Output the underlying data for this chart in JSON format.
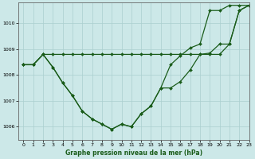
{
  "title": "Graphe pression niveau de la mer (hPa)",
  "background_color": "#cce8e8",
  "grid_color": "#aacfcf",
  "line_color": "#1a5c1a",
  "marker_color": "#1a5c1a",
  "xlim": [
    -0.5,
    23
  ],
  "ylim": [
    1005.5,
    1010.8
  ],
  "yticks": [
    1006,
    1007,
    1008,
    1009,
    1010
  ],
  "xticks": [
    0,
    1,
    2,
    3,
    4,
    5,
    6,
    7,
    8,
    9,
    10,
    11,
    12,
    13,
    14,
    15,
    16,
    17,
    18,
    19,
    20,
    21,
    22,
    23
  ],
  "series1_x": [
    0,
    1,
    2,
    3,
    4,
    5,
    6,
    7,
    8,
    9,
    10,
    11,
    12,
    13,
    14,
    15,
    16,
    17,
    18,
    19,
    20,
    21,
    22,
    23
  ],
  "series1_y": [
    1008.4,
    1008.4,
    1008.8,
    1008.8,
    1008.8,
    1008.8,
    1008.8,
    1008.8,
    1008.8,
    1008.8,
    1008.8,
    1008.8,
    1008.8,
    1008.8,
    1008.8,
    1008.8,
    1008.8,
    1008.8,
    1008.8,
    1008.8,
    1008.8,
    1009.2,
    1010.5,
    1010.7
  ],
  "series2_x": [
    0,
    1,
    2,
    3,
    4,
    5,
    6,
    7,
    8,
    9,
    10,
    11,
    12,
    13,
    14,
    15,
    16,
    17,
    18,
    19,
    20,
    21,
    22,
    23
  ],
  "series2_y": [
    1008.4,
    1008.4,
    1008.8,
    1008.3,
    1007.7,
    1007.2,
    1006.6,
    1006.3,
    1006.1,
    1005.9,
    1006.1,
    1006.0,
    1006.5,
    1006.8,
    1007.5,
    1007.5,
    1007.75,
    1008.2,
    1008.8,
    1008.85,
    1009.2,
    1009.2,
    1010.5,
    1010.7
  ],
  "series3_x": [
    0,
    1,
    2,
    3,
    4,
    5,
    6,
    7,
    8,
    9,
    10,
    11,
    12,
    13,
    14,
    15,
    16,
    17,
    18,
    19,
    20,
    21,
    22,
    23
  ],
  "series3_y": [
    1008.4,
    1008.4,
    1008.8,
    1008.3,
    1007.7,
    1007.2,
    1006.6,
    1006.3,
    1006.1,
    1005.9,
    1006.1,
    1006.0,
    1006.5,
    1006.8,
    1007.5,
    1008.4,
    1008.75,
    1009.05,
    1009.2,
    1010.5,
    1010.5,
    1010.7,
    1010.7,
    1010.7
  ]
}
